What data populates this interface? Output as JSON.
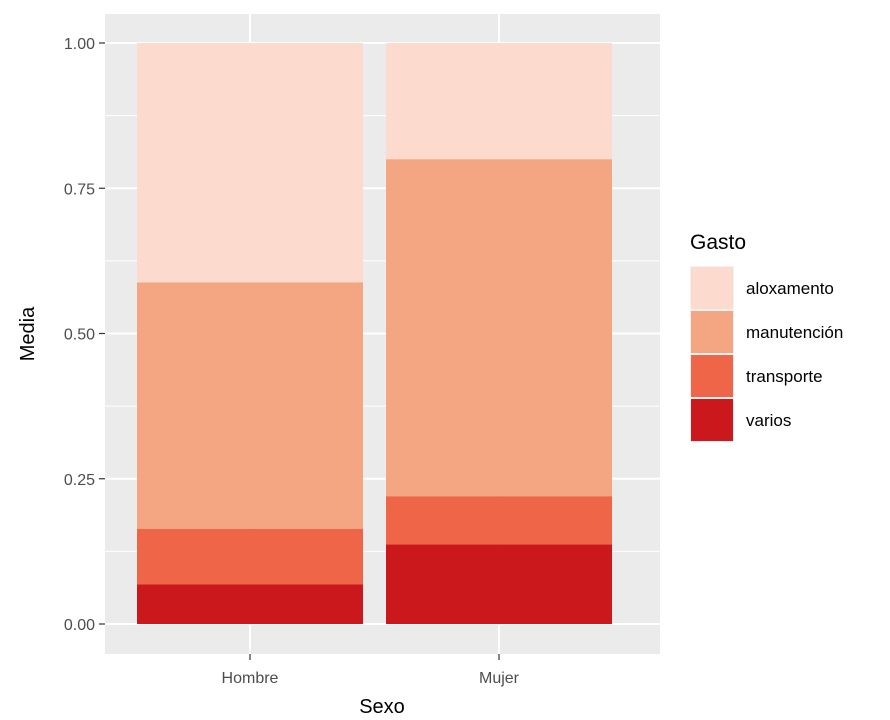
{
  "chart_data": {
    "type": "bar",
    "stacked": true,
    "categories": [
      "Hombre",
      "Mujer"
    ],
    "series": [
      {
        "name": "varios",
        "values": [
          0.068,
          0.137
        ],
        "color": "#cb181d"
      },
      {
        "name": "transporte",
        "values": [
          0.096,
          0.083
        ],
        "color": "#ef6548"
      },
      {
        "name": "manutención",
        "values": [
          0.424,
          0.58
        ],
        "color": "#f4a582"
      },
      {
        "name": "aloxamento",
        "values": [
          0.412,
          0.2
        ],
        "color": "#fcdbce"
      }
    ],
    "xlabel": "Sexo",
    "ylabel": "Media",
    "ylim": [
      0,
      1
    ],
    "yticks": [
      "0.00",
      "0.25",
      "0.50",
      "0.75",
      "1.00"
    ],
    "legend": {
      "title": "Gasto",
      "position": "right",
      "items": [
        "aloxamento",
        "manutención",
        "transporte",
        "varios"
      ]
    },
    "grid": true,
    "panel_color": "#ebebeb"
  }
}
